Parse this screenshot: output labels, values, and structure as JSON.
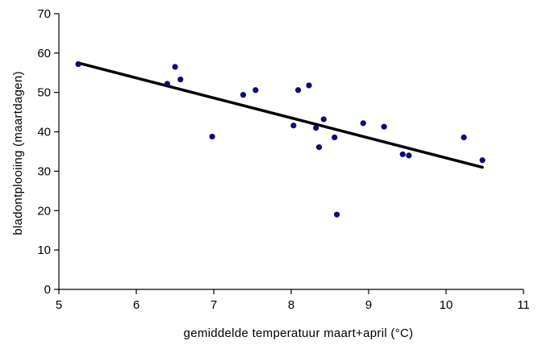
{
  "chart_data": {
    "type": "scatter",
    "title": "",
    "xlabel": "gemiddelde  temperatuur  maart+april  (°C)",
    "ylabel": "bladontplooiing  (maartdagen)",
    "xlim": [
      5,
      11
    ],
    "ylim": [
      0,
      70
    ],
    "xticks": [
      5,
      6,
      7,
      8,
      9,
      10,
      11
    ],
    "yticks": [
      0,
      10,
      20,
      30,
      40,
      50,
      60,
      70
    ],
    "grid": false,
    "legend": "none",
    "points": {
      "x": [
        5.25,
        6.4,
        6.5,
        6.57,
        6.98,
        7.38,
        7.54,
        8.03,
        8.09,
        8.23,
        8.32,
        8.36,
        8.42,
        8.56,
        8.59,
        8.93,
        9.2,
        9.44,
        9.52,
        10.23,
        10.47
      ],
      "y": [
        57.2,
        52.2,
        56.5,
        53.3,
        38.8,
        49.4,
        50.6,
        41.6,
        50.6,
        51.8,
        41.0,
        36.1,
        43.2,
        38.6,
        19.0,
        42.2,
        41.3,
        34.3,
        34.0,
        38.6,
        32.8
      ],
      "color": "#0a0a7a"
    },
    "trendline": {
      "x": [
        5.25,
        10.47
      ],
      "y": [
        57.5,
        31.0
      ],
      "color": "#000000"
    }
  }
}
